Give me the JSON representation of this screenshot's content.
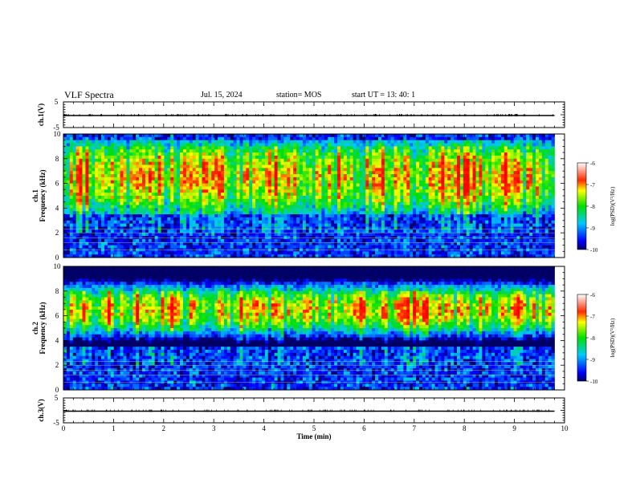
{
  "header": {
    "title": "VLF Spectra",
    "date": "Jul. 15, 2024",
    "station": "station= MOS",
    "start_ut": "start UT = 13: 40: 1"
  },
  "chart_data": [
    {
      "type": "line",
      "panel": "ch1-waveform",
      "ylabel": "ch.1(V)",
      "ylim": [
        -5,
        5
      ],
      "yticks": [
        "5",
        "-5"
      ],
      "xlim": [
        0,
        10
      ],
      "series": [
        {
          "x": [
            0,
            9.8
          ],
          "y": [
            0,
            0
          ]
        }
      ]
    },
    {
      "type": "heatmap",
      "panel": "ch1-spectrogram",
      "ylabel": "ch.1 Frequency (kHz)",
      "ylim": [
        0,
        10
      ],
      "yticks": [
        "0",
        "2",
        "4",
        "6",
        "8",
        "10"
      ],
      "xlim": [
        0,
        10
      ],
      "data_xmax": 9.8,
      "intense_band_khz": [
        4,
        9
      ],
      "colorbar": {
        "label": "log(PSD)(V²/Hz)",
        "range": [
          -10,
          -6
        ],
        "ticks": [
          "-6",
          "-7",
          "-8",
          "-9",
          "-10"
        ]
      }
    },
    {
      "type": "heatmap",
      "panel": "ch2-spectrogram",
      "ylabel": "ch.2 Frequency (kHz)",
      "ylim": [
        0,
        10
      ],
      "yticks": [
        "0",
        "2",
        "4",
        "6",
        "8",
        "10"
      ],
      "xlim": [
        0,
        10
      ],
      "data_xmax": 9.8,
      "intense_band_khz": [
        5,
        8
      ],
      "colorbar": {
        "label": "log(PSD)(V²/Hz)",
        "range": [
          -10,
          -6
        ],
        "ticks": [
          "-6",
          "-7",
          "-8",
          "-9",
          "-10"
        ]
      }
    },
    {
      "type": "line",
      "panel": "ch3-waveform",
      "ylabel": "ch.3(V)",
      "xlabel": "Time (min)",
      "ylim": [
        -5,
        5
      ],
      "yticks": [
        "5",
        "-5"
      ],
      "xlim": [
        0,
        10
      ],
      "xticks": [
        "0",
        "1",
        "2",
        "3",
        "4",
        "5",
        "6",
        "7",
        "8",
        "9",
        "10"
      ],
      "series": [
        {
          "x": [
            0,
            9.8
          ],
          "y": [
            0,
            0
          ]
        }
      ]
    }
  ]
}
